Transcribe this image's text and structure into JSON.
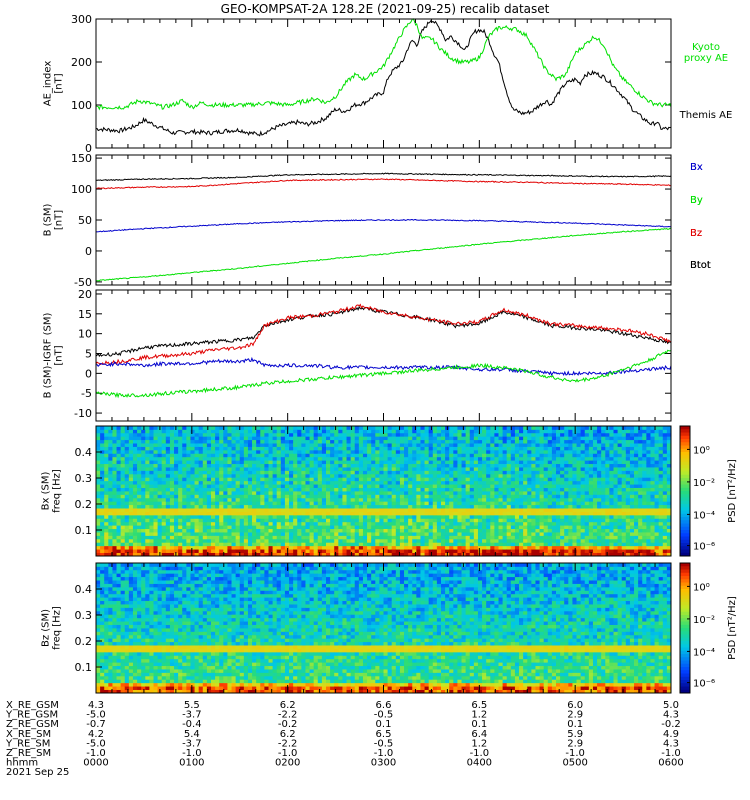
{
  "title": "GEO-KOMPSAT-2A 128.2E (2021-09-25) recalib dataset",
  "colors": {
    "black": "#000000",
    "red": "#e00000",
    "green": "#00e000",
    "blue": "#0000cc"
  },
  "x_axis": {
    "range_hours": [
      0,
      6
    ],
    "ticks": [
      "0000",
      "0100",
      "0200",
      "0300",
      "0400",
      "0500",
      "0600"
    ]
  },
  "ephemeris": {
    "rows": [
      {
        "label": "X_RE_GSM",
        "values": [
          "4.3",
          "5.5",
          "6.2",
          "6.6",
          "6.5",
          "6.0",
          "5.0"
        ]
      },
      {
        "label": "Y_RE_GSM",
        "values": [
          "-5.0",
          "-3.7",
          "-2.2",
          "-0.5",
          "1.2",
          "2.9",
          "4.3"
        ]
      },
      {
        "label": "Z_RE_GSM",
        "values": [
          "-0.7",
          "-0.4",
          "-0.2",
          "0.1",
          "0.1",
          "0.1",
          "-0.2"
        ]
      },
      {
        "label": "X_RE_SM",
        "values": [
          "4.2",
          "5.4",
          "6.2",
          "6.5",
          "6.4",
          "5.9",
          "4.9"
        ]
      },
      {
        "label": "Y_RE_SM",
        "values": [
          "-5.0",
          "-3.7",
          "-2.2",
          "-0.5",
          "1.2",
          "2.9",
          "4.3"
        ]
      },
      {
        "label": "Z_RE_SM",
        "values": [
          "-1.0",
          "-1.0",
          "-1.0",
          "-1.0",
          "-1.0",
          "-1.0",
          "-1.0"
        ]
      },
      {
        "label": "hhmm",
        "values": [
          "0000",
          "0100",
          "0200",
          "0300",
          "0400",
          "0500",
          "0600"
        ]
      }
    ],
    "date_label": "2021 Sep 25"
  },
  "chart_data": [
    {
      "id": "ae",
      "type": "line",
      "ylabel": "AE_index\n[nT]",
      "ylim": [
        0,
        300
      ],
      "yticks": [
        "0",
        "100",
        "200",
        "300"
      ],
      "legend": [
        {
          "label": "Kyoto\nproxy AE",
          "color": "#00e000"
        },
        {
          "label": "Themis AE",
          "color": "#000000"
        }
      ],
      "series": [
        {
          "name": "Themis AE",
          "color": "#000000",
          "x": [
            0,
            0.25,
            0.4,
            0.5,
            0.6,
            0.7,
            0.8,
            1.0,
            1.2,
            1.35,
            1.5,
            1.6,
            1.7,
            1.8,
            1.9,
            2.0,
            2.1,
            2.2,
            2.3,
            2.4,
            2.5,
            2.6,
            2.7,
            2.8,
            2.9,
            3.0,
            3.05,
            3.1,
            3.2,
            3.25,
            3.3,
            3.35,
            3.4,
            3.45,
            3.5,
            3.6,
            3.65,
            3.7,
            3.8,
            3.85,
            3.9,
            3.95,
            4.0,
            4.05,
            4.1,
            4.15,
            4.2,
            4.25,
            4.3,
            4.35,
            4.45,
            4.55,
            4.6,
            4.7,
            4.75,
            4.8,
            4.9,
            5.0,
            5.05,
            5.1,
            5.2,
            5.3,
            5.4,
            5.5,
            5.6,
            5.7,
            5.8,
            5.85,
            5.9,
            6.0
          ],
          "y": [
            45,
            40,
            50,
            65,
            55,
            45,
            35,
            38,
            35,
            40,
            42,
            35,
            32,
            40,
            50,
            55,
            60,
            55,
            60,
            70,
            90,
            85,
            100,
            105,
            120,
            130,
            165,
            180,
            200,
            230,
            250,
            240,
            270,
            285,
            300,
            275,
            250,
            260,
            240,
            225,
            250,
            270,
            275,
            270,
            250,
            220,
            200,
            160,
            120,
            90,
            80,
            85,
            95,
            110,
            100,
            120,
            150,
            160,
            150,
            170,
            175,
            165,
            145,
            120,
            90,
            70,
            55,
            60,
            45,
            45
          ]
        },
        {
          "name": "Kyoto proxy AE",
          "color": "#00e000",
          "x": [
            0,
            0.3,
            0.45,
            0.55,
            0.7,
            0.8,
            0.9,
            1.0,
            1.1,
            1.2,
            1.4,
            1.6,
            1.8,
            2.0,
            2.1,
            2.2,
            2.3,
            2.4,
            2.5,
            2.6,
            2.7,
            2.8,
            2.9,
            3.0,
            3.1,
            3.2,
            3.3,
            3.35,
            3.4,
            3.5,
            3.6,
            3.7,
            3.8,
            3.9,
            4.0,
            4.1,
            4.2,
            4.3,
            4.4,
            4.5,
            4.55,
            4.6,
            4.7,
            4.8,
            4.9,
            5.0,
            5.1,
            5.2,
            5.3,
            5.4,
            5.5,
            5.6,
            5.7,
            5.8,
            5.9,
            6.0
          ],
          "y": [
            95,
            95,
            110,
            105,
            95,
            100,
            110,
            95,
            105,
            100,
            100,
            100,
            105,
            100,
            105,
            110,
            115,
            105,
            120,
            150,
            170,
            160,
            175,
            190,
            230,
            270,
            300,
            285,
            255,
            255,
            230,
            210,
            200,
            200,
            210,
            260,
            280,
            280,
            275,
            260,
            240,
            220,
            180,
            160,
            170,
            220,
            240,
            260,
            240,
            190,
            160,
            140,
            120,
            105,
            100,
            100
          ]
        }
      ]
    },
    {
      "id": "b",
      "type": "line",
      "ylabel": "B (SM)\n[nT]",
      "ylim": [
        -55,
        155
      ],
      "yticks": [
        "-50",
        "0",
        "50",
        "100",
        "150"
      ],
      "legend": [
        {
          "label": "Bx",
          "color": "#0000cc"
        },
        {
          "label": "By",
          "color": "#00e000"
        },
        {
          "label": "Bz",
          "color": "#e00000"
        },
        {
          "label": "Btot",
          "color": "#000000"
        }
      ],
      "series": [
        {
          "name": "Btot",
          "color": "#000000",
          "x": [
            0,
            0.5,
            1,
            1.5,
            2,
            2.5,
            3,
            3.5,
            4,
            4.5,
            5,
            5.5,
            6
          ],
          "y": [
            114,
            116,
            117,
            119,
            123,
            124,
            125,
            124,
            123,
            122,
            121,
            120,
            121
          ]
        },
        {
          "name": "Bz",
          "color": "#e00000",
          "x": [
            0,
            0.5,
            1,
            1.5,
            2,
            2.5,
            3,
            3.5,
            4,
            4.5,
            5,
            5.5,
            6
          ],
          "y": [
            101,
            103,
            104,
            109,
            114,
            115,
            116,
            114,
            112,
            111,
            109,
            108,
            106
          ]
        },
        {
          "name": "Bx",
          "color": "#0000cc",
          "x": [
            0,
            0.5,
            1,
            1.5,
            2,
            2.5,
            3,
            3.5,
            4,
            4.5,
            5,
            5.5,
            6
          ],
          "y": [
            31,
            36,
            40,
            44,
            47,
            49,
            50,
            50,
            49,
            47,
            45,
            42,
            39
          ]
        },
        {
          "name": "By",
          "color": "#00e000",
          "x": [
            0,
            0.5,
            1,
            1.5,
            2,
            2.5,
            3,
            3.5,
            4,
            4.5,
            5,
            5.5,
            6
          ],
          "y": [
            -48,
            -42,
            -35,
            -28,
            -20,
            -12,
            -5,
            3,
            11,
            18,
            25,
            31,
            36
          ]
        }
      ]
    },
    {
      "id": "db",
      "type": "line",
      "ylabel": "B (SM)-IGRF (SM)\n[nT]",
      "ylim": [
        -12,
        21
      ],
      "yticks": [
        "-10",
        "-5",
        "0",
        "5",
        "10",
        "15",
        "20"
      ],
      "legend": [
        {
          "label": "Bx",
          "color": "#0000cc"
        },
        {
          "label": "By",
          "color": "#00e000"
        },
        {
          "label": "Bz",
          "color": "#e00000"
        },
        {
          "label": "Btot",
          "color": "#000000"
        }
      ],
      "series": [
        {
          "name": "Btot",
          "color": "#000000",
          "x": [
            0,
            0.25,
            0.5,
            0.75,
            1.0,
            1.25,
            1.5,
            1.65,
            1.75,
            2.0,
            2.25,
            2.5,
            2.75,
            3.0,
            3.25,
            3.5,
            3.75,
            4.0,
            4.25,
            4.5,
            4.75,
            5.0,
            5.25,
            5.5,
            5.75,
            6.0
          ],
          "y": [
            4.5,
            5,
            6.5,
            7,
            7.5,
            8,
            8.5,
            9,
            12,
            13.5,
            14.5,
            15,
            16.5,
            15.5,
            14.5,
            13.5,
            12,
            12.5,
            15.5,
            14,
            12,
            11.5,
            11,
            10,
            9,
            7.5
          ]
        },
        {
          "name": "Bz",
          "color": "#e00000",
          "x": [
            0,
            0.25,
            0.5,
            0.75,
            1.0,
            1.25,
            1.5,
            1.65,
            1.75,
            2.0,
            2.25,
            2.5,
            2.75,
            3.0,
            3.25,
            3.5,
            3.75,
            4.0,
            4.25,
            4.5,
            4.75,
            5.0,
            5.25,
            5.5,
            5.75,
            6.0
          ],
          "y": [
            2.5,
            3,
            4,
            4.5,
            5,
            6,
            6.5,
            7.5,
            12,
            14,
            14.5,
            15.5,
            17,
            15.5,
            14.5,
            13.5,
            12.5,
            13,
            16,
            14.5,
            12.5,
            12,
            11.5,
            11,
            10,
            8
          ]
        },
        {
          "name": "Bx",
          "color": "#0000cc",
          "x": [
            0,
            0.25,
            0.5,
            0.75,
            1.0,
            1.25,
            1.5,
            1.65,
            1.75,
            2.0,
            2.25,
            2.5,
            2.75,
            3.0,
            3.25,
            3.5,
            3.75,
            4.0,
            4.25,
            4.5,
            4.75,
            5.0,
            5.25,
            5.5,
            5.75,
            6.0
          ],
          "y": [
            2,
            2.5,
            2,
            2.5,
            2.5,
            3,
            3,
            3.5,
            2,
            2,
            2,
            1.5,
            1.5,
            1.5,
            1.5,
            1.5,
            1.5,
            1,
            1,
            0.5,
            0,
            0,
            0,
            0.5,
            1,
            1.5
          ]
        },
        {
          "name": "By",
          "color": "#00e000",
          "x": [
            0,
            0.25,
            0.5,
            0.75,
            1.0,
            1.25,
            1.5,
            1.65,
            1.75,
            2.0,
            2.25,
            2.5,
            2.75,
            3.0,
            3.25,
            3.5,
            3.75,
            4.0,
            4.25,
            4.5,
            4.75,
            5.0,
            5.25,
            5.5,
            5.75,
            6.0
          ],
          "y": [
            -5,
            -5.5,
            -5.5,
            -5,
            -4.5,
            -4,
            -3.5,
            -3,
            -2.5,
            -2,
            -1.5,
            -1,
            -0.5,
            0,
            0.5,
            1,
            1.5,
            2,
            1.5,
            0.5,
            -1,
            -2,
            -1,
            1,
            3,
            6
          ]
        }
      ]
    },
    {
      "id": "specx",
      "type": "heatmap",
      "ylabel": "Bx (SM)\nfreq [Hz]",
      "ylim": [
        0,
        0.5
      ],
      "yticks": [
        "0.1",
        "0.2",
        "0.3",
        "0.4"
      ],
      "colorbar": {
        "label": "PSD [nT²/Hz]",
        "ticks": [
          "10⁰",
          "10⁻²",
          "10⁻⁴",
          "10⁻⁶"
        ]
      }
    },
    {
      "id": "specz",
      "type": "heatmap",
      "ylabel": "Bz (SM)\nfreq [Hz]",
      "ylim": [
        0,
        0.5
      ],
      "yticks": [
        "0.1",
        "0.2",
        "0.3",
        "0.4"
      ],
      "colorbar": {
        "label": "PSD [nT²/Hz]",
        "ticks": [
          "10⁰",
          "10⁻²",
          "10⁻⁴",
          "10⁻⁶"
        ]
      }
    }
  ]
}
